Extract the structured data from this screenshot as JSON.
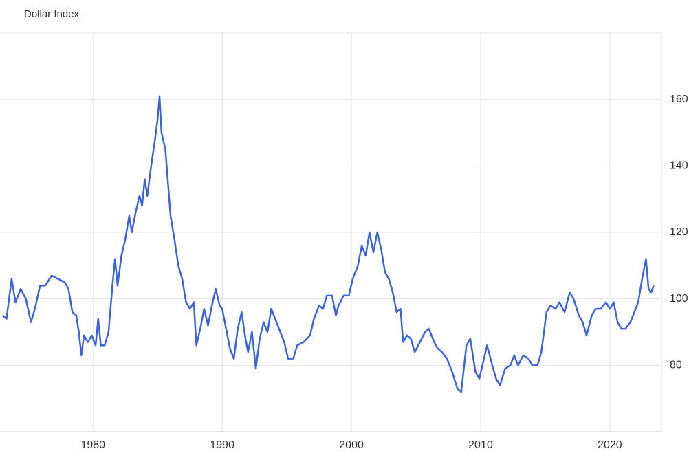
{
  "chart_data": {
    "type": "line",
    "title": "Dollar Index",
    "color": "#3b63de",
    "x": [
      1973.0,
      1973.3,
      1973.5,
      1973.7,
      1974.0,
      1974.4,
      1974.8,
      1975.2,
      1975.5,
      1975.9,
      1976.3,
      1976.8,
      1977.3,
      1977.8,
      1978.1,
      1978.4,
      1978.7,
      1978.9,
      1979.1,
      1979.3,
      1979.6,
      1979.9,
      1980.2,
      1980.4,
      1980.6,
      1980.9,
      1981.2,
      1981.5,
      1981.7,
      1981.9,
      1982.2,
      1982.5,
      1982.8,
      1983.0,
      1983.3,
      1983.6,
      1983.8,
      1984.0,
      1984.2,
      1984.5,
      1984.8,
      1985.0,
      1985.15,
      1985.3,
      1985.6,
      1985.8,
      1986.0,
      1986.3,
      1986.6,
      1986.9,
      1987.2,
      1987.5,
      1987.8,
      1988.0,
      1988.3,
      1988.6,
      1988.9,
      1989.2,
      1989.5,
      1989.8,
      1990.0,
      1990.3,
      1990.6,
      1990.9,
      1991.2,
      1991.5,
      1991.8,
      1992.0,
      1992.3,
      1992.6,
      1992.9,
      1993.2,
      1993.5,
      1993.8,
      1994.1,
      1994.5,
      1994.8,
      1995.1,
      1995.5,
      1995.8,
      1996.3,
      1996.8,
      1997.1,
      1997.5,
      1997.8,
      1998.1,
      1998.5,
      1998.8,
      1999.0,
      1999.4,
      1999.8,
      2000.1,
      2000.5,
      2000.8,
      2001.1,
      2001.4,
      2001.7,
      2002.0,
      2002.3,
      2002.6,
      2002.9,
      2003.2,
      2003.5,
      2003.8,
      2004.0,
      2004.3,
      2004.6,
      2004.9,
      2005.3,
      2005.7,
      2006.0,
      2006.4,
      2006.7,
      2007.0,
      2007.4,
      2007.8,
      2008.2,
      2008.5,
      2008.9,
      2009.2,
      2009.6,
      2009.9,
      2010.2,
      2010.5,
      2010.9,
      2011.2,
      2011.5,
      2011.9,
      2012.3,
      2012.6,
      2012.9,
      2013.3,
      2013.7,
      2014.0,
      2014.4,
      2014.7,
      2015.1,
      2015.4,
      2015.8,
      2016.1,
      2016.5,
      2016.9,
      2017.2,
      2017.6,
      2017.9,
      2018.2,
      2018.6,
      2018.9,
      2019.3,
      2019.7,
      2020.0,
      2020.3,
      2020.6,
      2020.9,
      2021.2,
      2021.6,
      2021.9,
      2022.2,
      2022.5,
      2022.8,
      2023.0,
      2023.2,
      2023.4
    ],
    "values": [
      95,
      94,
      100,
      106,
      99,
      103,
      100,
      93,
      97,
      104,
      104,
      107,
      106,
      105,
      103,
      96,
      95,
      90,
      83,
      89,
      87,
      89,
      86,
      94,
      86,
      86,
      90,
      104,
      112,
      104,
      113,
      118,
      125,
      120,
      126,
      131,
      128,
      136,
      131,
      140,
      148,
      154,
      161,
      150,
      145,
      135,
      125,
      118,
      110,
      106,
      99,
      97,
      99,
      86,
      91,
      97,
      92,
      98,
      103,
      98,
      97,
      91,
      85,
      82,
      91,
      96,
      88,
      84,
      90,
      79,
      88,
      93,
      90,
      97,
      94,
      90,
      87,
      82,
      82,
      86,
      87,
      89,
      94,
      98,
      97,
      101,
      101,
      95,
      98,
      101,
      101,
      106,
      110,
      116,
      113,
      120,
      114,
      120,
      115,
      108,
      106,
      102,
      96,
      97,
      87,
      89,
      88,
      84,
      87,
      90,
      91,
      87,
      85,
      84,
      82,
      78,
      73,
      72,
      86,
      88,
      78,
      76,
      81,
      86,
      80,
      76,
      74,
      79,
      80,
      83,
      80,
      83,
      82,
      80,
      80,
      84,
      96,
      98,
      97,
      99,
      96,
      102,
      100,
      95,
      93,
      89,
      95,
      97,
      97,
      99,
      97,
      99,
      93,
      91,
      91,
      93,
      96,
      99,
      106,
      112,
      103,
      102,
      104
    ],
    "xlim": [
      1972.8,
      2024.0
    ],
    "xticks": [
      1980,
      1990,
      2000,
      2010,
      2020
    ],
    "ylim": [
      60,
      180
    ],
    "yticks": [
      80,
      100,
      120,
      140,
      160
    ],
    "grid": true
  }
}
